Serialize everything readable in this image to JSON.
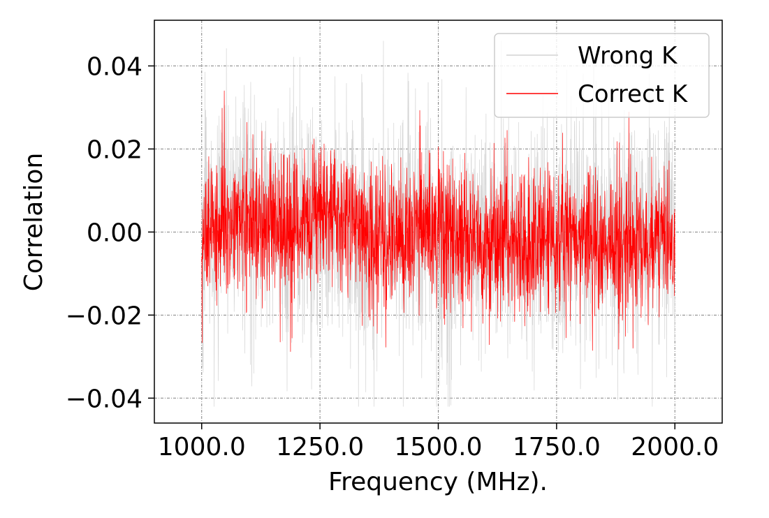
{
  "chart_data": {
    "type": "line",
    "title": "",
    "xlabel": "Frequency (MHz).",
    "ylabel": "Correlation",
    "xlim": [
      900,
      2100
    ],
    "ylim": [
      -0.046,
      0.051
    ],
    "x_range": [
      1000,
      2000
    ],
    "x_ticks": [
      1000,
      1250,
      1500,
      1750,
      2000
    ],
    "x_tick_labels": [
      "1000.0",
      "1250.0",
      "1500.0",
      "1750.0",
      "2000.0"
    ],
    "y_ticks": [
      -0.04,
      -0.02,
      0.0,
      0.02,
      0.04
    ],
    "y_tick_labels": [
      "−0.04",
      "−0.02",
      "0.00",
      "0.02",
      "0.04"
    ],
    "grid": true,
    "legend": {
      "position": "top-right",
      "entries": [
        "Wrong K",
        "Correct K"
      ]
    },
    "series": [
      {
        "name": "Wrong K",
        "color": "#d3d3d3",
        "typical_band": [
          -0.03,
          0.03
        ],
        "extremes": [
          -0.042,
          0.046
        ],
        "x": [
          1000,
          1100,
          1200,
          1300,
          1400,
          1500,
          1600,
          1700,
          1800,
          1900,
          2000
        ],
        "mean": [
          0.0,
          0.004,
          0.001,
          0.003,
          0.001,
          -0.001,
          -0.001,
          -0.002,
          0.0,
          0.0,
          0.0
        ]
      },
      {
        "name": "Correct K",
        "color": "#ff0000",
        "typical_band": [
          -0.017,
          0.02
        ],
        "extremes": [
          -0.036,
          0.034
        ],
        "x": [
          1000,
          1100,
          1200,
          1300,
          1400,
          1500,
          1600,
          1700,
          1800,
          1900,
          2000
        ],
        "mean": [
          0.002,
          0.002,
          0.002,
          0.004,
          -0.002,
          0.002,
          -0.003,
          -0.002,
          -0.002,
          -0.003,
          0.0
        ]
      }
    ]
  }
}
